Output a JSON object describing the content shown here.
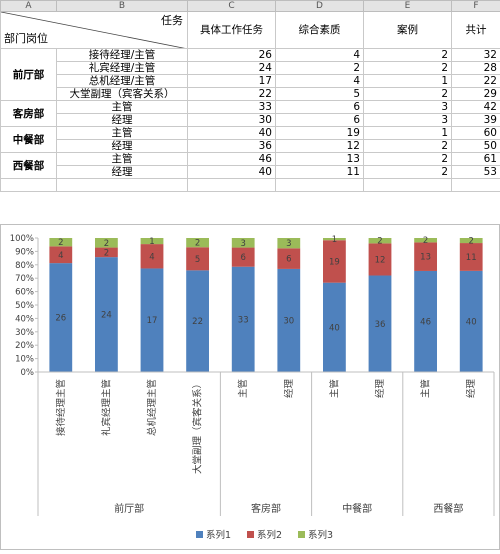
{
  "sheet": {
    "col_letters": [
      "A",
      "B",
      "C",
      "D",
      "E",
      "F"
    ],
    "header": {
      "corner_top": "任务",
      "corner_bottom": "部门岗位",
      "cols": [
        "具体工作任务",
        "综合素质",
        "案例",
        "共计"
      ]
    },
    "groups": [
      {
        "dept": "前厅部",
        "rows": [
          {
            "role": "接待经理/主管",
            "values": [
              26,
              4,
              2,
              32
            ]
          },
          {
            "role": "礼宾经理/主管",
            "values": [
              24,
              2,
              2,
              28
            ]
          },
          {
            "role": "总机经理/主管",
            "values": [
              17,
              4,
              1,
              22
            ]
          },
          {
            "role": "大堂副理（宾客关系）",
            "values": [
              22,
              5,
              2,
              29
            ]
          }
        ]
      },
      {
        "dept": "客房部",
        "rows": [
          {
            "role": "主管",
            "values": [
              33,
              6,
              3,
              42
            ]
          },
          {
            "role": "经理",
            "values": [
              30,
              6,
              3,
              39
            ]
          }
        ]
      },
      {
        "dept": "中餐部",
        "rows": [
          {
            "role": "主管",
            "values": [
              40,
              19,
              1,
              60
            ]
          },
          {
            "role": "经理",
            "values": [
              36,
              12,
              2,
              50
            ]
          }
        ]
      },
      {
        "dept": "西餐部",
        "rows": [
          {
            "role": "主管",
            "values": [
              46,
              13,
              2,
              61
            ]
          },
          {
            "role": "经理",
            "values": [
              40,
              11,
              2,
              53
            ]
          }
        ]
      }
    ]
  },
  "chart_data": {
    "type": "bar",
    "stacked": "percent",
    "categories": [
      "接待经理主管",
      "礼宾经理主管",
      "总机经理主管",
      "大堂副理（宾客关系）",
      "主管",
      "经理",
      "主管",
      "经理",
      "主管",
      "经理"
    ],
    "groups": [
      {
        "label": "前厅部",
        "count": 4
      },
      {
        "label": "客房部",
        "count": 2
      },
      {
        "label": "中餐部",
        "count": 2
      },
      {
        "label": "西餐部",
        "count": 2
      }
    ],
    "series": [
      {
        "name": "系列1",
        "color": "#4f81bd",
        "values": [
          26,
          24,
          17,
          22,
          33,
          30,
          40,
          36,
          46,
          40
        ]
      },
      {
        "name": "系列2",
        "color": "#c0504d",
        "values": [
          4,
          2,
          4,
          5,
          6,
          6,
          19,
          12,
          13,
          11
        ]
      },
      {
        "name": "系列3",
        "color": "#9bbb59",
        "values": [
          2,
          2,
          1,
          2,
          3,
          3,
          1,
          2,
          2,
          2
        ]
      }
    ],
    "y_ticks": [
      "0%",
      "10%",
      "20%",
      "30%",
      "40%",
      "50%",
      "60%",
      "70%",
      "80%",
      "90%",
      "100%"
    ],
    "ylim": [
      0,
      100
    ],
    "grid": false,
    "legend": "bottom"
  }
}
